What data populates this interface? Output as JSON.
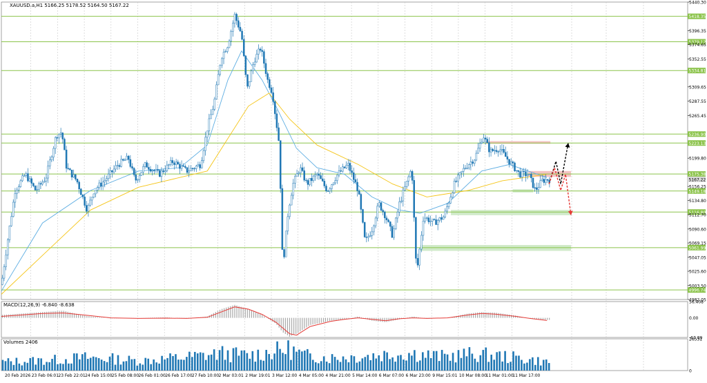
{
  "header": {
    "symbol_line": "XAUUSD.a,H1  5166.25 5178.52 5164.50 5167.22"
  },
  "colors": {
    "candle": "#1f77b4",
    "ma_fast": "#5dade2",
    "ma_slow": "#f5c518",
    "level_line": "#8bc34a",
    "level_label_bg": "#8bc34a",
    "current_label_bg": "#d9d9d9",
    "resistance_zone": "#f2b8b8",
    "support_zone": "#c8e6c0",
    "macd_hist": "#a8a8a8",
    "macd_signal": "#e53935",
    "volume_bar": "#1f77b4",
    "forecast_up": "#000000",
    "forecast_down": "#e53935",
    "grid": "#c8c8c8"
  },
  "chart_data": {
    "type": "candlestick",
    "price_axis": {
      "ylim": [
        4982.05,
        5440.3
      ],
      "ticks": [
        "5440.30",
        "5396.35",
        "5374.65",
        "5352.55",
        "5309.65",
        "5287.55",
        "5265.45",
        "5199.80",
        "5156.25",
        "5134.80",
        "5112.70",
        "5090.60",
        "5069.15",
        "5047.05",
        "5025.60",
        "5003.50",
        "4982.05"
      ]
    },
    "levels": [
      {
        "value": 5418.35,
        "label": "5418.35"
      },
      {
        "value": 5379.12,
        "label": "5379.12"
      },
      {
        "value": 5334.81,
        "label": "5334.81"
      },
      {
        "value": 5236.9,
        "label": "5236.90"
      },
      {
        "value": 5223.13,
        "label": "5223.13"
      },
      {
        "value": 5175.38,
        "label": "5175.38"
      },
      {
        "value": 5149.18,
        "label": "5149.18"
      },
      {
        "value": 5116.8,
        "label": "5116.80"
      },
      {
        "value": 5061.99,
        "label": "5061.99"
      },
      {
        "value": 4996.74,
        "label": "4996.74"
      }
    ],
    "current_price": {
      "value": 5167.22,
      "label": "5167.22"
    },
    "time_axis": [
      "20 Feb 2026",
      "23 Feb 06:01",
      "23 Feb 22:01",
      "24 Feb 15:00",
      "25 Feb 08:00",
      "26 Feb 01:00",
      "26 Feb 17:00",
      "27 Feb 10:00",
      "2 Mar 03:01",
      "2 Mar 19:01",
      "3 Mar 12:00",
      "4 Mar 05:00",
      "4 Mar 21:00",
      "5 Mar 14:00",
      "6 Mar 07:00",
      "6 Mar 23:00",
      "9 Mar 15:01",
      "10 Mar 08:00",
      "11 Mar 01:00",
      "11 Mar 17:00"
    ],
    "price_path": [
      [
        0,
        5005
      ],
      [
        10,
        5080
      ],
      [
        20,
        5150
      ],
      [
        35,
        5175
      ],
      [
        50,
        5150
      ],
      [
        65,
        5170
      ],
      [
        80,
        5235
      ],
      [
        88,
        5240
      ],
      [
        95,
        5185
      ],
      [
        110,
        5165
      ],
      [
        125,
        5120
      ],
      [
        135,
        5150
      ],
      [
        150,
        5165
      ],
      [
        170,
        5190
      ],
      [
        185,
        5200
      ],
      [
        195,
        5165
      ],
      [
        210,
        5190
      ],
      [
        230,
        5175
      ],
      [
        250,
        5195
      ],
      [
        270,
        5180
      ],
      [
        290,
        5190
      ],
      [
        300,
        5245
      ],
      [
        310,
        5285
      ],
      [
        320,
        5355
      ],
      [
        330,
        5375
      ],
      [
        340,
        5420
      ],
      [
        350,
        5390
      ],
      [
        358,
        5305
      ],
      [
        368,
        5350
      ],
      [
        378,
        5370
      ],
      [
        388,
        5320
      ],
      [
        395,
        5300
      ],
      [
        405,
        5220
      ],
      [
        410,
        5030
      ],
      [
        418,
        5120
      ],
      [
        425,
        5160
      ],
      [
        435,
        5185
      ],
      [
        445,
        5160
      ],
      [
        460,
        5175
      ],
      [
        475,
        5150
      ],
      [
        490,
        5175
      ],
      [
        505,
        5190
      ],
      [
        520,
        5150
      ],
      [
        530,
        5070
      ],
      [
        540,
        5090
      ],
      [
        550,
        5130
      ],
      [
        560,
        5110
      ],
      [
        570,
        5080
      ],
      [
        580,
        5130
      ],
      [
        590,
        5160
      ],
      [
        598,
        5185
      ],
      [
        605,
        5020
      ],
      [
        615,
        5110
      ],
      [
        630,
        5100
      ],
      [
        645,
        5110
      ],
      [
        660,
        5160
      ],
      [
        675,
        5185
      ],
      [
        690,
        5200
      ],
      [
        702,
        5235
      ],
      [
        712,
        5210
      ],
      [
        725,
        5215
      ],
      [
        740,
        5195
      ],
      [
        755,
        5175
      ],
      [
        768,
        5175
      ],
      [
        778,
        5150
      ],
      [
        788,
        5165
      ],
      [
        795,
        5167
      ]
    ],
    "price_range_x": [
      0,
      800
    ],
    "moving_averages": [
      {
        "name": "fast",
        "points": [
          [
            0,
            4995
          ],
          [
            60,
            5100
          ],
          [
            130,
            5150
          ],
          [
            200,
            5180
          ],
          [
            260,
            5185
          ],
          [
            300,
            5220
          ],
          [
            330,
            5320
          ],
          [
            350,
            5365
          ],
          [
            380,
            5320
          ],
          [
            400,
            5280
          ],
          [
            430,
            5215
          ],
          [
            460,
            5185
          ],
          [
            500,
            5175
          ],
          [
            540,
            5140
          ],
          [
            580,
            5120
          ],
          [
            610,
            5115
          ],
          [
            650,
            5130
          ],
          [
            700,
            5180
          ],
          [
            740,
            5190
          ],
          [
            795,
            5170
          ]
        ]
      },
      {
        "name": "slow",
        "points": [
          [
            0,
            4990
          ],
          [
            60,
            5050
          ],
          [
            130,
            5120
          ],
          [
            200,
            5155
          ],
          [
            260,
            5170
          ],
          [
            300,
            5180
          ],
          [
            330,
            5230
          ],
          [
            360,
            5280
          ],
          [
            390,
            5300
          ],
          [
            420,
            5260
          ],
          [
            460,
            5220
          ],
          [
            520,
            5190
          ],
          [
            570,
            5160
          ],
          [
            620,
            5140
          ],
          [
            680,
            5150
          ],
          [
            730,
            5165
          ],
          [
            795,
            5175
          ]
        ]
      }
    ],
    "zones": [
      {
        "kind": "resistance",
        "x": [
          706,
          800
        ],
        "y": [
          5222,
          5226
        ]
      },
      {
        "kind": "resistance",
        "x": [
          768,
          830
        ],
        "y": [
          5171,
          5180
        ]
      },
      {
        "kind": "support",
        "x": [
          745,
          775
        ],
        "y": [
          5147,
          5152
        ]
      },
      {
        "kind": "support",
        "x": [
          655,
          830
        ],
        "y": [
          5112,
          5120
        ]
      },
      {
        "kind": "support",
        "x": [
          610,
          830
        ],
        "y": [
          5057,
          5066
        ]
      }
    ],
    "forecast_paths": [
      {
        "kind": "up",
        "points": [
          [
            798,
            5160
          ],
          [
            808,
            5195
          ],
          [
            815,
            5160
          ],
          [
            826,
            5223
          ]
        ]
      },
      {
        "kind": "down",
        "points": [
          [
            798,
            5160
          ],
          [
            806,
            5185
          ],
          [
            815,
            5150
          ],
          [
            822,
            5175
          ],
          [
            830,
            5112
          ]
        ]
      }
    ],
    "macd": {
      "label": "MACD(12,26,9) -6.840 -8.638",
      "ylim": [
        -67.89,
        56.408
      ],
      "ticks": [
        "56.408",
        "0.00",
        "-67.89"
      ],
      "histogram_path": [
        [
          0,
          10
        ],
        [
          30,
          15
        ],
        [
          60,
          20
        ],
        [
          90,
          25
        ],
        [
          120,
          8
        ],
        [
          160,
          -2
        ],
        [
          200,
          0
        ],
        [
          240,
          2
        ],
        [
          270,
          -3
        ],
        [
          300,
          5
        ],
        [
          320,
          30
        ],
        [
          340,
          45
        ],
        [
          360,
          30
        ],
        [
          380,
          10
        ],
        [
          400,
          -20
        ],
        [
          410,
          -50
        ],
        [
          420,
          -65
        ],
        [
          430,
          -55
        ],
        [
          450,
          -25
        ],
        [
          480,
          -10
        ],
        [
          500,
          -5
        ],
        [
          520,
          5
        ],
        [
          540,
          -10
        ],
        [
          560,
          -15
        ],
        [
          580,
          -5
        ],
        [
          600,
          5
        ],
        [
          620,
          -3
        ],
        [
          650,
          0
        ],
        [
          680,
          15
        ],
        [
          700,
          20
        ],
        [
          720,
          18
        ],
        [
          750,
          8
        ],
        [
          770,
          -3
        ],
        [
          795,
          -7
        ]
      ],
      "signal_path": [
        [
          0,
          5
        ],
        [
          30,
          10
        ],
        [
          60,
          15
        ],
        [
          90,
          17
        ],
        [
          120,
          10
        ],
        [
          160,
          0
        ],
        [
          200,
          -2
        ],
        [
          240,
          -1
        ],
        [
          270,
          -2
        ],
        [
          300,
          2
        ],
        [
          320,
          20
        ],
        [
          340,
          38
        ],
        [
          360,
          30
        ],
        [
          380,
          12
        ],
        [
          400,
          -15
        ],
        [
          420,
          -55
        ],
        [
          430,
          -60
        ],
        [
          450,
          -30
        ],
        [
          480,
          -12
        ],
        [
          500,
          -5
        ],
        [
          520,
          0
        ],
        [
          540,
          -5
        ],
        [
          560,
          -10
        ],
        [
          580,
          -3
        ],
        [
          600,
          0
        ],
        [
          620,
          -2
        ],
        [
          650,
          0
        ],
        [
          680,
          10
        ],
        [
          700,
          15
        ],
        [
          720,
          13
        ],
        [
          750,
          5
        ],
        [
          770,
          -2
        ],
        [
          795,
          -9
        ]
      ]
    },
    "volume": {
      "label": "Volumes 2406",
      "ylim": [
        0,
        26531
      ],
      "ticks": [
        "26531",
        "0"
      ],
      "profile": [
        [
          0,
          8000
        ],
        [
          40,
          9000
        ],
        [
          80,
          10000
        ],
        [
          120,
          12000
        ],
        [
          160,
          11000
        ],
        [
          200,
          9000
        ],
        [
          240,
          11000
        ],
        [
          280,
          13000
        ],
        [
          320,
          16000
        ],
        [
          360,
          14000
        ],
        [
          400,
          18000
        ],
        [
          420,
          20000
        ],
        [
          440,
          14000
        ],
        [
          480,
          12000
        ],
        [
          520,
          13000
        ],
        [
          560,
          15000
        ],
        [
          600,
          16000
        ],
        [
          640,
          13000
        ],
        [
          680,
          15000
        ],
        [
          720,
          14000
        ],
        [
          760,
          11000
        ],
        [
          795,
          8000
        ]
      ]
    }
  }
}
